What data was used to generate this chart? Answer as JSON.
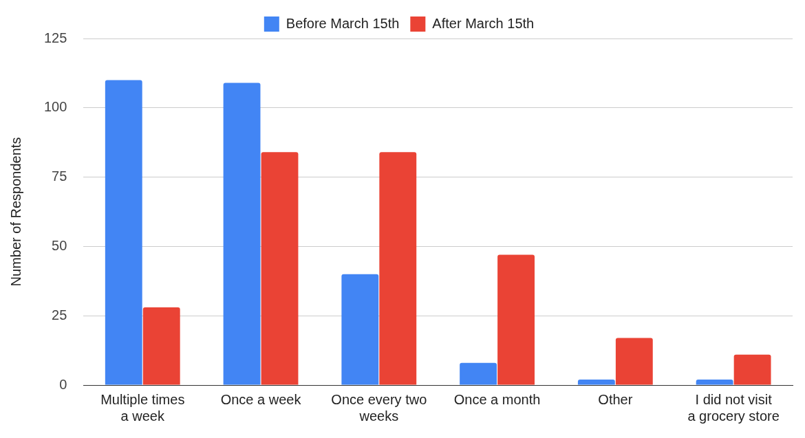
{
  "chart_data": {
    "type": "bar",
    "ylabel": "Number of Respondents",
    "categories": [
      "Multiple times a week",
      "Once a week",
      "Once every two weeks",
      "Once a month",
      "Other",
      "I did not visit a grocery store"
    ],
    "series": [
      {
        "name": "Before March 15th",
        "color": "#4285f4",
        "values": [
          110,
          109,
          40,
          8,
          2,
          2
        ]
      },
      {
        "name": "After March 15th",
        "color": "#ea4335",
        "values": [
          28,
          84,
          84,
          47,
          17,
          11
        ]
      }
    ],
    "ylim": [
      0,
      125
    ],
    "yticks": [
      0,
      25,
      50,
      75,
      100,
      125
    ],
    "grid": "y",
    "legend": "top"
  }
}
